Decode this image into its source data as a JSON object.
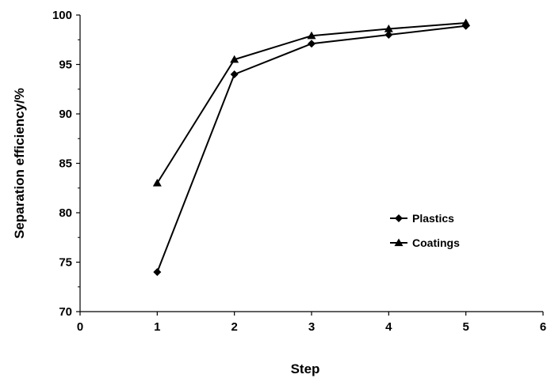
{
  "chart_data": {
    "type": "line",
    "xlabel": "Step",
    "ylabel": "Separation efficiency/%",
    "xlim": [
      0,
      6
    ],
    "ylim": [
      70,
      100
    ],
    "x_ticks": [
      0,
      1,
      2,
      3,
      4,
      5,
      6
    ],
    "y_ticks": [
      70,
      75,
      80,
      85,
      90,
      95,
      100
    ],
    "grid": false,
    "legend_position": "center-right",
    "series": [
      {
        "name": "Plastics",
        "marker": "diamond",
        "color": "#000000",
        "x": [
          1,
          2,
          3,
          4,
          5
        ],
        "y": [
          74,
          94,
          97.1,
          98,
          98.9
        ]
      },
      {
        "name": "Coatings",
        "marker": "triangle",
        "color": "#000000",
        "x": [
          1,
          2,
          3,
          4,
          5
        ],
        "y": [
          83,
          95.5,
          97.9,
          98.6,
          99.2
        ]
      }
    ]
  }
}
